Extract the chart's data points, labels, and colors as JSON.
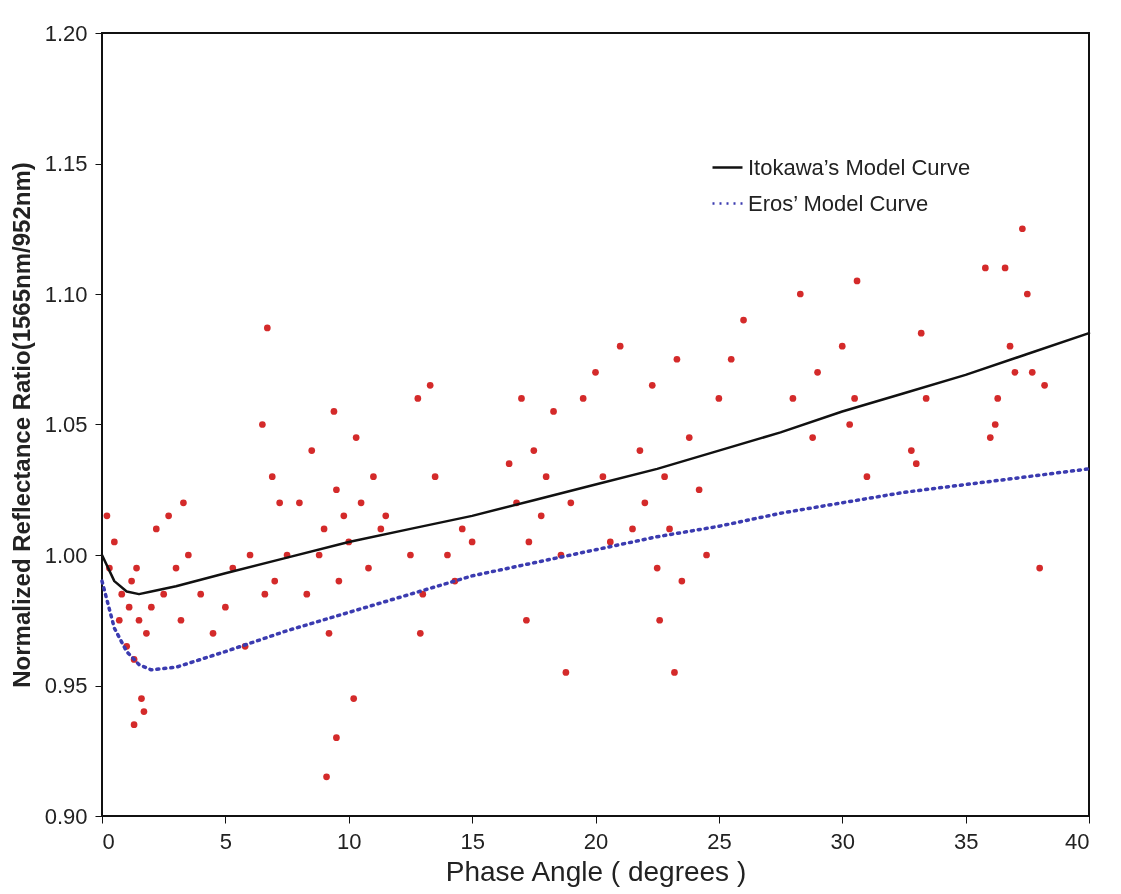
{
  "chart_data": {
    "type": "scatter",
    "xlabel": "Phase Angle ( degrees )",
    "ylabel": "Normalized Reflectance Ratio(1565nm/952nm)",
    "xlim": [
      0,
      40
    ],
    "xticks": [
      0,
      5,
      10,
      15,
      20,
      25,
      30,
      35,
      40
    ],
    "ylim": [
      0.9,
      1.2
    ],
    "yticks": [
      {
        "value": 0.9,
        "label": "0.90"
      },
      0.95,
      {
        "value": 1.0,
        "label": "1.00"
      },
      1.05,
      {
        "value": 1.1,
        "label": "1.10"
      },
      1.15,
      {
        "value": 1.2,
        "label": "1.20"
      }
    ],
    "legend": "top right",
    "grid": false,
    "series": [
      {
        "color": "#d42a2a",
        "marker": "circle",
        "x": [
          0.2,
          0.3,
          0.5,
          0.7,
          0.8,
          1.0,
          1.1,
          1.2,
          1.3,
          1.4,
          1.5,
          1.6,
          1.8,
          2.0,
          2.2,
          1.3,
          1.7,
          2.5,
          2.7,
          3.0,
          3.3,
          3.5,
          3.2,
          4.0,
          4.5,
          5.0,
          5.3,
          5.8,
          6.0,
          6.5,
          6.6,
          6.7,
          6.9,
          7.0,
          7.2,
          7.5,
          8.0,
          8.3,
          8.5,
          8.8,
          9.0,
          9.2,
          9.4,
          9.5,
          9.6,
          9.8,
          10.0,
          10.3,
          10.5,
          10.8,
          11.0,
          11.3,
          11.5,
          9.5,
          9.1,
          10.2,
          12.5,
          12.8,
          13.0,
          13.3,
          13.5,
          12.9,
          14.0,
          14.3,
          14.6,
          15.0,
          16.5,
          16.8,
          17.0,
          17.3,
          17.5,
          17.8,
          18.0,
          18.3,
          18.6,
          19.0,
          18.8,
          17.2,
          19.5,
          20.0,
          20.3,
          20.6,
          21.0,
          21.5,
          21.8,
          22.0,
          22.3,
          22.5,
          22.8,
          23.0,
          23.3,
          23.5,
          23.8,
          24.2,
          24.5,
          23.2,
          22.6,
          25.0,
          25.5,
          26.0,
          28.0,
          28.3,
          28.8,
          29.0,
          30.0,
          30.3,
          30.6,
          31.0,
          30.5,
          32.8,
          33.0,
          33.2,
          33.4,
          35.8,
          36.0,
          36.3,
          36.6,
          37.0,
          37.3,
          36.2,
          37.5,
          38.0,
          38.2,
          36.8,
          37.7
        ],
        "values": [
          1.015,
          0.995,
          1.005,
          0.975,
          0.985,
          0.965,
          0.98,
          0.99,
          0.96,
          0.995,
          0.975,
          0.945,
          0.97,
          0.98,
          1.01,
          0.935,
          0.94,
          0.985,
          1.015,
          0.995,
          1.02,
          1.0,
          0.975,
          0.985,
          0.97,
          0.98,
          0.995,
          0.965,
          1.0,
          1.05,
          0.985,
          1.087,
          1.03,
          0.99,
          1.02,
          1.0,
          1.02,
          0.985,
          1.04,
          1.0,
          1.01,
          0.97,
          1.055,
          1.025,
          0.99,
          1.015,
          1.005,
          1.045,
          1.02,
          0.995,
          1.03,
          1.01,
          1.015,
          0.93,
          0.915,
          0.945,
          1.0,
          1.06,
          0.985,
          1.065,
          1.03,
          0.97,
          1.0,
          0.99,
          1.01,
          1.005,
          1.035,
          1.02,
          1.06,
          1.005,
          1.04,
          1.015,
          1.03,
          1.055,
          1.0,
          1.02,
          0.955,
          0.975,
          1.06,
          1.07,
          1.03,
          1.005,
          1.08,
          1.01,
          1.04,
          1.02,
          1.065,
          0.995,
          1.03,
          1.01,
          1.075,
          0.99,
          1.045,
          1.025,
          1.0,
          0.955,
          0.975,
          1.06,
          1.075,
          1.09,
          1.06,
          1.1,
          1.045,
          1.07,
          1.08,
          1.05,
          1.105,
          1.03,
          1.06,
          1.04,
          1.035,
          1.085,
          1.06,
          1.11,
          1.045,
          1.06,
          1.11,
          1.07,
          1.125,
          1.05,
          1.1,
          0.995,
          1.065,
          1.08,
          1.07
        ]
      },
      {
        "type": "line",
        "name": "Itokawa’s Model Curve",
        "color": "#111111",
        "line_style": "solid",
        "marker": "none",
        "x": [
          0,
          0.5,
          1,
          1.5,
          2,
          3,
          5,
          7.5,
          10,
          12.5,
          15,
          17.5,
          20,
          22.5,
          25,
          27.5,
          30,
          32.5,
          35,
          37.5,
          40
        ],
        "values": [
          1.0,
          0.99,
          0.986,
          0.985,
          0.986,
          0.988,
          0.993,
          0.999,
          1.005,
          1.01,
          1.015,
          1.021,
          1.027,
          1.033,
          1.04,
          1.047,
          1.055,
          1.062,
          1.069,
          1.077,
          1.085
        ]
      },
      {
        "type": "line",
        "name": "Eros’ Model Curve",
        "color": "#3b3bb0",
        "line_style": "dotted",
        "marker": "none",
        "x": [
          0,
          0.5,
          1,
          1.5,
          2,
          3,
          5,
          7.5,
          10,
          12.5,
          15,
          17.5,
          20,
          22.5,
          25,
          27.5,
          30,
          32.5,
          35,
          37.5,
          40
        ],
        "values": [
          0.99,
          0.972,
          0.963,
          0.958,
          0.956,
          0.957,
          0.963,
          0.971,
          0.978,
          0.985,
          0.992,
          0.997,
          1.002,
          1.007,
          1.011,
          1.016,
          1.02,
          1.024,
          1.027,
          1.03,
          1.033
        ]
      }
    ]
  }
}
